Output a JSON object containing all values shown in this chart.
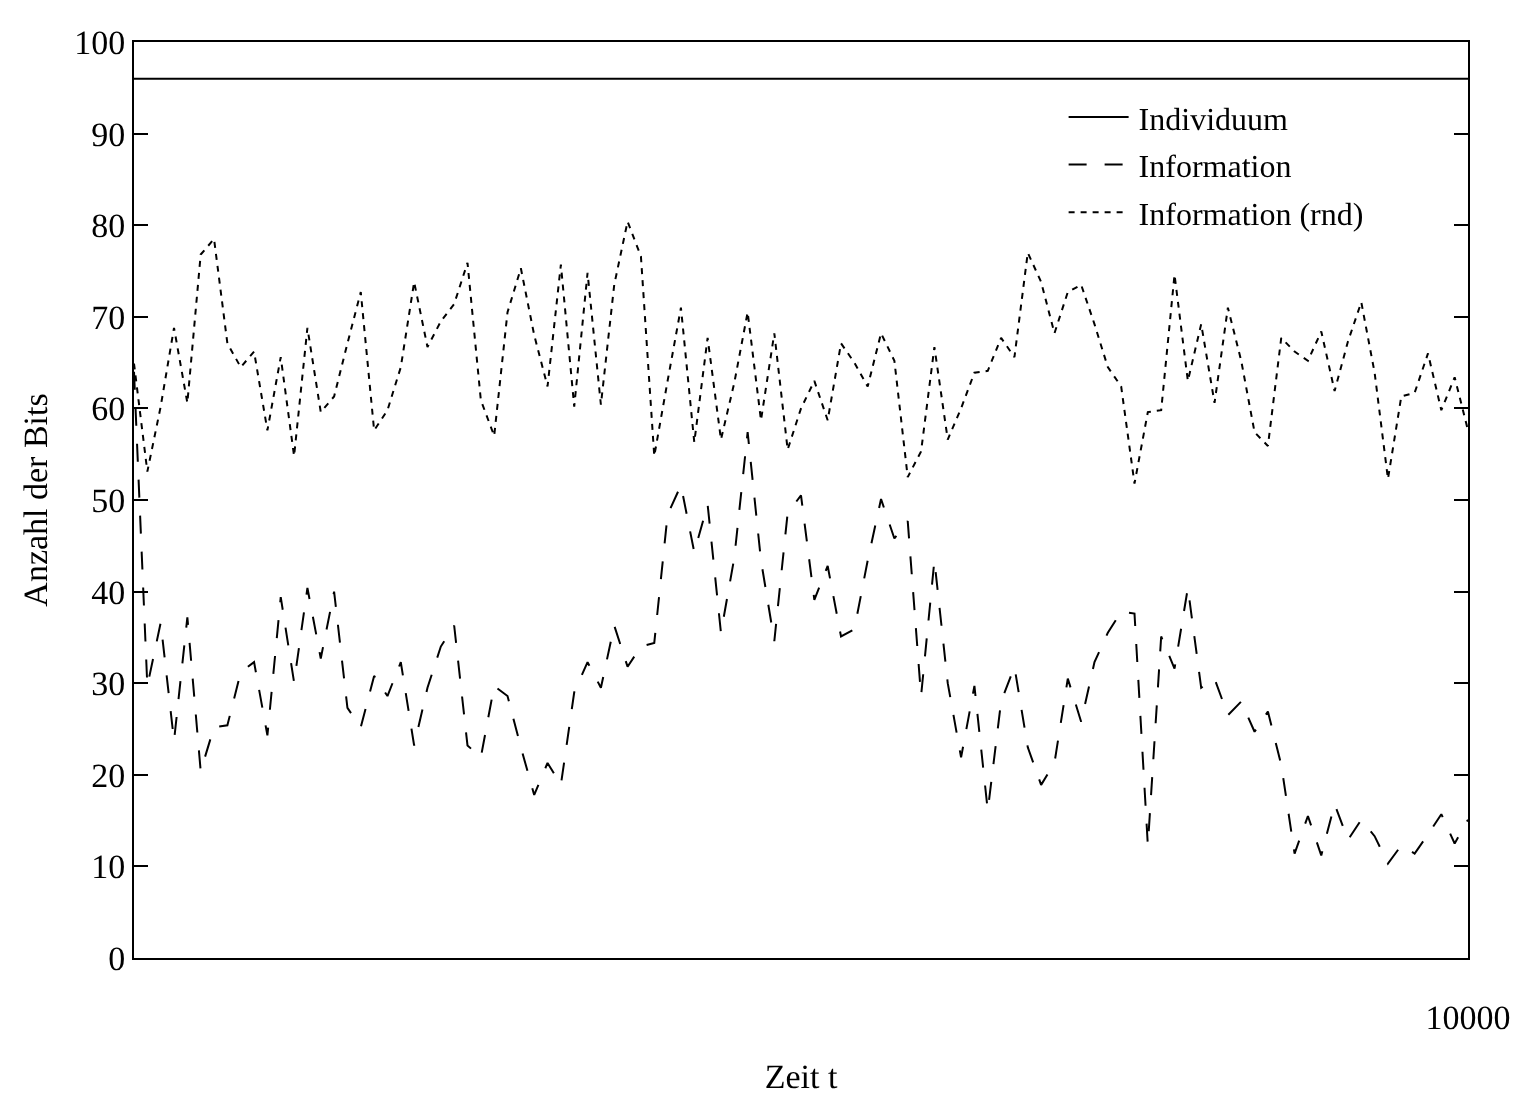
{
  "chart_data": {
    "type": "line",
    "xlabel": "Zeit t",
    "ylabel": "Anzahl der Bits",
    "categories": [
      null,
      null,
      null,
      null,
      null,
      null,
      null,
      null,
      null,
      null,
      null,
      null,
      null,
      null,
      null,
      null,
      null,
      null,
      null,
      null,
      null,
      null,
      null,
      null,
      null,
      null,
      null,
      null,
      null,
      null,
      null,
      null,
      null,
      null,
      null,
      null,
      null,
      null,
      null,
      null,
      null,
      null,
      null,
      null,
      null,
      null,
      null,
      null,
      null,
      null,
      null,
      null,
      null,
      null,
      null,
      null,
      null,
      null,
      null,
      null,
      null,
      null,
      null,
      null,
      null,
      null,
      null,
      null,
      null,
      null,
      null,
      null,
      null,
      null,
      null,
      null,
      null,
      null,
      null,
      null,
      null,
      null,
      null,
      null,
      null,
      null,
      null,
      null,
      null,
      null,
      null,
      null,
      null,
      null,
      null,
      null,
      null,
      null,
      null,
      null,
      "10000"
    ],
    "ylim": [
      0,
      100
    ],
    "yticks": [
      0,
      10,
      20,
      30,
      40,
      50,
      60,
      70,
      80,
      90,
      100
    ],
    "legend": "top right",
    "marker": "none",
    "series": [
      {
        "name": "Individuum",
        "color": "#000000",
        "line_style": "solid",
        "values": [
          96,
          96,
          96,
          96,
          96,
          96,
          96,
          96,
          96,
          96,
          96,
          96,
          96,
          96,
          96,
          96,
          96,
          96,
          96,
          96,
          96,
          96,
          96,
          96,
          96,
          96,
          96,
          96,
          96,
          96,
          96,
          96,
          96,
          96,
          96,
          96,
          96,
          96,
          96,
          96,
          96,
          96,
          96,
          96,
          96,
          96,
          96,
          96,
          96,
          96,
          96,
          96,
          96,
          96,
          96,
          96,
          96,
          96,
          96,
          96,
          96,
          96,
          96,
          96,
          96,
          96,
          96,
          96,
          96,
          96,
          96,
          96,
          96,
          96,
          96,
          96,
          96,
          96,
          96,
          96,
          96,
          96,
          96,
          96,
          96,
          96,
          96,
          96,
          96,
          96,
          96,
          96,
          96,
          96,
          96,
          96,
          96,
          96,
          96,
          96,
          96
        ]
      },
      {
        "name": "Information",
        "color": "#000000",
        "line_style": "dashed",
        "values": [
          64,
          29.7,
          36.6,
          23.7,
          37.2,
          20.4,
          25.2,
          25.4,
          31.2,
          32.3,
          24.3,
          39.4,
          30.1,
          40.4,
          32.7,
          40,
          27.3,
          25.2,
          30.8,
          28.6,
          32.3,
          23.2,
          29.5,
          34,
          36.3,
          23.2,
          21.9,
          29.7,
          28.6,
          23,
          17.8,
          21.3,
          18.9,
          29,
          32.3,
          29.5,
          36.3,
          31.8,
          34,
          34.4,
          48.4,
          51.6,
          44.3,
          49.5,
          35.5,
          43.7,
          57.4,
          43.4,
          34.6,
          48.6,
          50.5,
          39.1,
          42.8,
          35.1,
          35.9,
          43.4,
          50.1,
          45.8,
          47.7,
          28.6,
          43.4,
          30,
          21.9,
          29.7,
          16.1,
          28,
          31.8,
          23,
          18.9,
          21.3,
          30.5,
          25.8,
          32.3,
          35.5,
          37.8,
          37.6,
          12.3,
          35.1,
          31.6,
          40.4,
          29.5,
          30.5,
          26.5,
          28,
          24.7,
          26.9,
          21.1,
          11.4,
          15.5,
          11.2,
          16.8,
          12.9,
          15.1,
          13.3,
          10.3,
          12.3,
          11.4,
          13.5,
          15.7,
          12.5,
          15.1
        ]
      },
      {
        "name": "Information (rnd)",
        "color": "#000000",
        "line_style": "dotted",
        "values": [
          64.9,
          53.1,
          60.2,
          68.8,
          60.6,
          76.8,
          78.5,
          67.1,
          64.5,
          66.2,
          57.6,
          65.6,
          54.8,
          68.8,
          59.6,
          61.3,
          67.1,
          72.7,
          57.6,
          59.8,
          64.5,
          73.8,
          66.7,
          69.5,
          71.4,
          75.9,
          60.9,
          57,
          70.5,
          75.3,
          68,
          62.4,
          75.7,
          60.2,
          74.8,
          60.4,
          73.5,
          80.4,
          76.6,
          54.8,
          63,
          71,
          56.3,
          67.7,
          56.6,
          62.8,
          70.5,
          58.7,
          68.2,
          55.5,
          60,
          63,
          58.7,
          67.1,
          65,
          62.4,
          68.2,
          65.2,
          52.5,
          55.3,
          66.7,
          56.6,
          60,
          63.9,
          64.1,
          67.7,
          65.6,
          77,
          73.8,
          68.2,
          72.7,
          73.5,
          69.2,
          64.5,
          62.4,
          51.8,
          59.6,
          59.8,
          74.6,
          63,
          69.2,
          60.6,
          71,
          65.2,
          57.4,
          55.9,
          67.7,
          66.2,
          65.2,
          68.4,
          61.9,
          67.3,
          71.6,
          63.9,
          52.3,
          61.3,
          61.7,
          66,
          59.8,
          63.4,
          57.6
        ]
      }
    ]
  }
}
